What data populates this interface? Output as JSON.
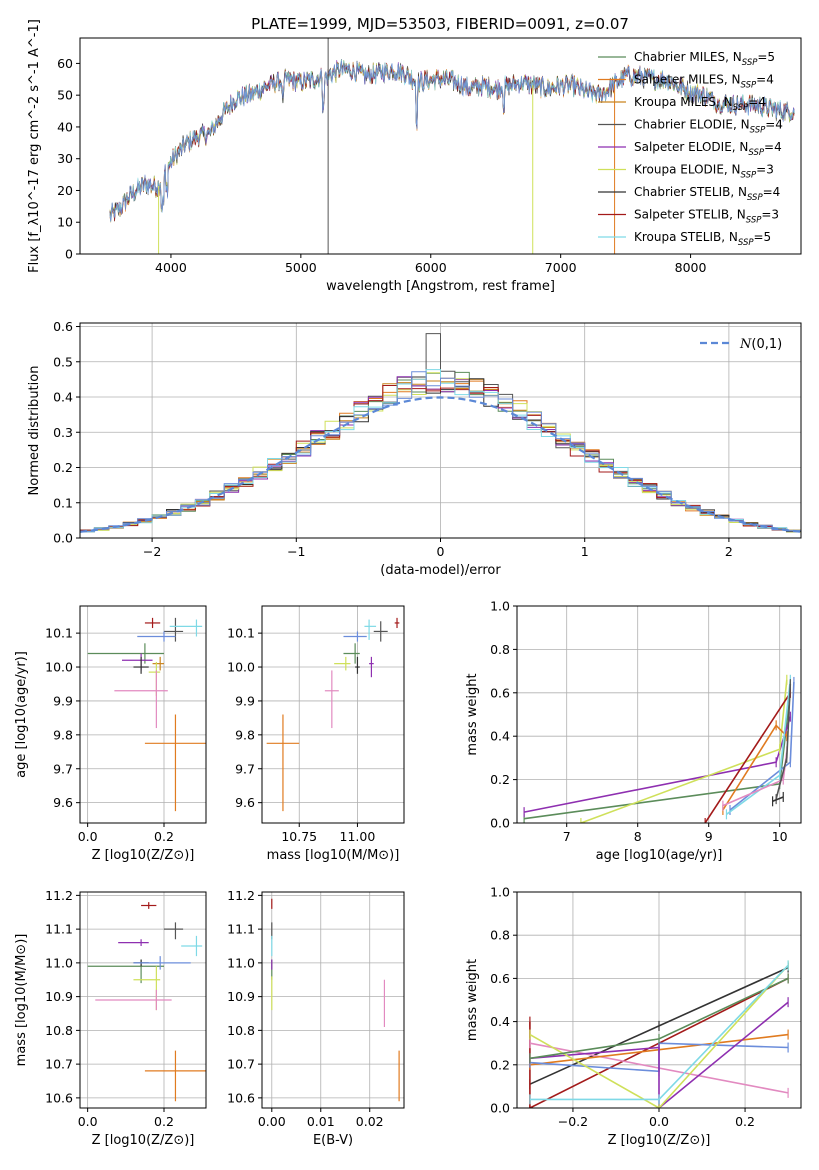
{
  "figure": {
    "title": "PLATE=1999, MJD=53503, FIBERID=0091, z=0.07"
  },
  "palette": [
    "#5b8c5a",
    "#e07b20",
    "#c9831e",
    "#555555",
    "#8e2fb0",
    "#cfe05a",
    "#333333",
    "#a31a1a",
    "#7fd9e6",
    "#6b8ddb",
    "#e28ac0"
  ],
  "chart_data": [
    {
      "id": "spectrum",
      "type": "line",
      "xlabel": "wavelength [Angstrom, rest frame]",
      "ylabel": "Flux [f_λ10^-17 erg cm^-2 s^-1 A^-1]",
      "xlim": [
        3300,
        8850
      ],
      "ylim": [
        0,
        68
      ],
      "xticks": [
        4000,
        5000,
        6000,
        7000,
        8000
      ],
      "yticks": [
        0,
        10,
        20,
        30,
        40,
        50,
        60
      ],
      "legend_position": "upper-right",
      "legend": [
        "Chabrier MILES, N_SSP=5",
        "Salpeter MILES, N_SSP=4",
        "Kroupa MILES, N_SSP=4",
        "Chabrier ELODIE, N_SSP=4",
        "Salpeter ELODIE, N_SSP=4",
        "Kroupa ELODIE, N_SSP=3",
        "Chabrier STELIB, N_SSP=4",
        "Salpeter STELIB, N_SSP=3",
        "Kroupa STELIB, N_SSP=5"
      ],
      "legend_colors": [
        "#5b8c5a",
        "#e07b20",
        "#c9831e",
        "#555555",
        "#8e2fb0",
        "#cfe05a",
        "#333333",
        "#a31a1a",
        "#7fd9e6"
      ],
      "continuum": {
        "x": [
          3530,
          3600,
          3700,
          3800,
          3900,
          3950,
          4000,
          4100,
          4200,
          4300,
          4400,
          4500,
          4600,
          4700,
          4800,
          4900,
          5000,
          5100,
          5200,
          5300,
          5400,
          5500,
          5600,
          5700,
          5800,
          5900,
          6000,
          6100,
          6200,
          6300,
          6400,
          6500,
          6600,
          6700,
          6800,
          6900,
          7000,
          7100,
          7200,
          7300,
          7400,
          7500,
          7600,
          7700,
          7800,
          7900,
          8000,
          8100,
          8200,
          8300,
          8400,
          8500,
          8600,
          8700,
          8800
        ],
        "y": [
          12,
          14,
          19,
          22,
          21,
          25,
          29,
          34,
          37,
          38,
          44,
          49,
          50,
          52,
          54,
          55,
          54,
          55,
          56,
          58,
          58,
          56,
          57,
          58,
          57,
          54,
          55,
          55,
          54,
          52,
          53,
          52,
          53,
          54,
          53,
          52,
          53,
          53,
          51,
          50,
          53,
          56,
          56,
          55,
          55,
          53,
          51,
          50,
          48,
          47,
          47,
          47,
          46,
          45,
          45
        ]
      }
    },
    {
      "id": "residual-histogram",
      "type": "histogram",
      "xlabel": "(data-model)/error",
      "ylabel": "Normed distribution",
      "xlim": [
        -2.5,
        2.5
      ],
      "ylim": [
        0,
        0.61
      ],
      "xticks": [
        -2,
        -1,
        0,
        1,
        2
      ],
      "yticks": [
        0.0,
        0.1,
        0.2,
        0.3,
        0.4,
        0.5,
        0.6
      ],
      "bin_width": 0.1,
      "grid": true,
      "legend": [
        "N(0,1)"
      ],
      "legend_position": "upper-right",
      "normal_curve": {
        "mean": 0,
        "sigma": 1
      }
    },
    {
      "id": "age-vs-Z",
      "type": "scatter-errorbar",
      "xlabel": "Z [log10(Z/Z⊙)]",
      "ylabel": "age [log10(age/yr)]",
      "xlim": [
        -0.02,
        0.31
      ],
      "ylim": [
        9.54,
        10.18
      ],
      "xticks": [
        0.0,
        0.2
      ],
      "yticks": [
        9.6,
        9.7,
        9.8,
        9.9,
        10.0,
        10.1
      ],
      "grid": true,
      "points": [
        {
          "x": 0.15,
          "y": 10.04,
          "xerr": [
            0.15,
            0.05
          ],
          "yerr": [
            0.03,
            0.03
          ],
          "color": "#5b8c5a"
        },
        {
          "x": 0.23,
          "y": 9.775,
          "xerr": [
            0.08,
            0.08
          ],
          "yerr": [
            0.2,
            0.085
          ],
          "color": "#e07b20"
        },
        {
          "x": 0.19,
          "y": 10.01,
          "xerr": [
            0.02,
            0.01
          ],
          "yerr": [
            0.02,
            0.02
          ],
          "color": "#c9831e"
        },
        {
          "x": 0.23,
          "y": 10.105,
          "xerr": [
            0.03,
            0.02
          ],
          "yerr": [
            0.03,
            0.04
          ],
          "color": "#555555"
        },
        {
          "x": 0.14,
          "y": 10.02,
          "xerr": [
            0.05,
            0.03
          ],
          "yerr": [
            0.03,
            0.02
          ],
          "color": "#8e2fb0"
        },
        {
          "x": 0.18,
          "y": 9.985,
          "xerr": [
            0.02,
            0.01
          ],
          "yerr": [
            0.07,
            0.03
          ],
          "color": "#cfe05a"
        },
        {
          "x": 0.14,
          "y": 10.0,
          "xerr": [
            0.02,
            0.02
          ],
          "yerr": [
            0.02,
            0.03
          ],
          "color": "#333333"
        },
        {
          "x": 0.17,
          "y": 10.13,
          "xerr": [
            0.02,
            0.02
          ],
          "yerr": [
            0.015,
            0.015
          ],
          "color": "#a31a1a"
        },
        {
          "x": 0.285,
          "y": 10.12,
          "xerr": [
            0.07,
            0.015
          ],
          "yerr": [
            0.03,
            0.02
          ],
          "color": "#7fd9e6"
        },
        {
          "x": 0.2,
          "y": 10.09,
          "xerr": [
            0.07,
            0.03
          ],
          "yerr": [
            0.015,
            0.015
          ],
          "color": "#6b8ddb"
        },
        {
          "x": 0.18,
          "y": 9.93,
          "xerr": [
            0.11,
            0.03
          ],
          "yerr": [
            0.11,
            0.06
          ],
          "color": "#e28ac0"
        }
      ]
    },
    {
      "id": "age-vs-mass",
      "type": "scatter-errorbar",
      "xlabel": "mass [log10(M/M⊙)]",
      "ylabel": "",
      "xlim": [
        10.59,
        11.2
      ],
      "ylim": [
        9.54,
        10.18
      ],
      "xticks": [
        10.75,
        11.0
      ],
      "yticks": [
        9.6,
        9.7,
        9.8,
        9.9,
        10.0,
        10.1
      ],
      "grid": true,
      "points": [
        {
          "x": 10.99,
          "y": 10.04,
          "xerr": [
            0.05,
            0.02
          ],
          "yerr": [
            0.03,
            0.03
          ],
          "color": "#5b8c5a"
        },
        {
          "x": 10.68,
          "y": 9.775,
          "xerr": [
            0.07,
            0.07
          ],
          "yerr": [
            0.2,
            0.085
          ],
          "color": "#e07b20"
        },
        {
          "x": 11.1,
          "y": 10.105,
          "xerr": [
            0.03,
            0.03
          ],
          "yerr": [
            0.03,
            0.03
          ],
          "color": "#555555"
        },
        {
          "x": 11.06,
          "y": 10.01,
          "xerr": [
            0.01,
            0.01
          ],
          "yerr": [
            0.04,
            0.02
          ],
          "color": "#8e2fb0"
        },
        {
          "x": 10.95,
          "y": 10.01,
          "xerr": [
            0.05,
            0.02
          ],
          "yerr": [
            0.02,
            0.02
          ],
          "color": "#cfe05a"
        },
        {
          "x": 11.0,
          "y": 10.0,
          "xerr": [
            0.01,
            0.01
          ],
          "yerr": [
            0.02,
            0.03
          ],
          "color": "#333333"
        },
        {
          "x": 11.17,
          "y": 10.13,
          "xerr": [
            0.01,
            0.01
          ],
          "yerr": [
            0.015,
            0.015
          ],
          "color": "#a31a1a"
        },
        {
          "x": 11.05,
          "y": 10.12,
          "xerr": [
            0.02,
            0.03
          ],
          "yerr": [
            0.04,
            0.02
          ],
          "color": "#7fd9e6"
        },
        {
          "x": 11.0,
          "y": 10.09,
          "xerr": [
            0.06,
            0.04
          ],
          "yerr": [
            0.015,
            0.015
          ],
          "color": "#6b8ddb"
        },
        {
          "x": 10.89,
          "y": 9.93,
          "xerr": [
            0.03,
            0.03
          ],
          "yerr": [
            0.11,
            0.06
          ],
          "color": "#e28ac0"
        }
      ]
    },
    {
      "id": "weight-vs-age",
      "type": "line",
      "xlabel": "age [log10(age/yr)]",
      "ylabel": "mass weight",
      "xlim": [
        6.3,
        10.3
      ],
      "ylim": [
        0,
        1.0
      ],
      "xticks": [
        7,
        8,
        9,
        10
      ],
      "yticks": [
        0.0,
        0.2,
        0.4,
        0.6,
        0.8,
        1.0
      ],
      "grid": true,
      "series": [
        {
          "color": "#5b8c5a",
          "x": [
            6.4,
            10.0,
            10.15
          ],
          "y": [
            0.02,
            0.18,
            0.6
          ]
        },
        {
          "color": "#8e2fb0",
          "x": [
            6.4,
            9.95,
            10.15
          ],
          "y": [
            0.05,
            0.28,
            0.49
          ]
        },
        {
          "color": "#cfe05a",
          "x": [
            7.2,
            10.0,
            10.1
          ],
          "y": [
            0.0,
            0.34,
            0.66
          ]
        },
        {
          "color": "#a31a1a",
          "x": [
            8.95,
            10.15
          ],
          "y": [
            0.0,
            0.6
          ]
        },
        {
          "color": "#e07b20",
          "x": [
            9.2,
            9.95,
            10.1
          ],
          "y": [
            0.06,
            0.45,
            0.4
          ]
        },
        {
          "color": "#6b8ddb",
          "x": [
            9.3,
            10.15,
            10.2
          ],
          "y": [
            0.06,
            0.28,
            0.65
          ]
        },
        {
          "color": "#7fd9e6",
          "x": [
            9.25,
            10.0,
            10.15
          ],
          "y": [
            0.04,
            0.22,
            0.66
          ]
        },
        {
          "color": "#e28ac0",
          "x": [
            9.2,
            10.05,
            10.1
          ],
          "y": [
            0.08,
            0.2,
            0.33
          ]
        },
        {
          "color": "#555555",
          "x": [
            9.95,
            10.1,
            10.15
          ],
          "y": [
            0.11,
            0.3,
            0.64
          ]
        },
        {
          "color": "#333333",
          "x": [
            9.9,
            10.05
          ],
          "y": [
            0.1,
            0.12
          ]
        }
      ]
    },
    {
      "id": "mass-vs-Z",
      "type": "scatter-errorbar",
      "xlabel": "Z [log10(Z/Z⊙)]",
      "ylabel": "mass [log10(M/M⊙)]",
      "xlim": [
        -0.02,
        0.31
      ],
      "ylim": [
        10.57,
        11.21
      ],
      "xticks": [
        0.0,
        0.2
      ],
      "yticks": [
        10.6,
        10.7,
        10.8,
        10.9,
        11.0,
        11.1,
        11.2
      ],
      "grid": true,
      "points": [
        {
          "x": 0.14,
          "y": 10.99,
          "xerr": [
            0.14,
            0.06
          ],
          "yerr": [
            0.05,
            0.02
          ],
          "color": "#5b8c5a"
        },
        {
          "x": 0.23,
          "y": 10.68,
          "xerr": [
            0.08,
            0.08
          ],
          "yerr": [
            0.09,
            0.06
          ],
          "color": "#e07b20"
        },
        {
          "x": 0.23,
          "y": 11.1,
          "xerr": [
            0.03,
            0.02
          ],
          "yerr": [
            0.03,
            0.02
          ],
          "color": "#555555"
        },
        {
          "x": 0.14,
          "y": 11.06,
          "xerr": [
            0.06,
            0.02
          ],
          "yerr": [
            0.01,
            0.01
          ],
          "color": "#8e2fb0"
        },
        {
          "x": 0.18,
          "y": 10.95,
          "xerr": [
            0.06,
            0.01
          ],
          "yerr": [
            0.09,
            0.04
          ],
          "color": "#cfe05a"
        },
        {
          "x": 0.14,
          "y": 11.0,
          "xerr": [
            0.02,
            0.02
          ],
          "yerr": [
            0.01,
            0.01
          ],
          "color": "#333333"
        },
        {
          "x": 0.16,
          "y": 11.17,
          "xerr": [
            0.02,
            0.02
          ],
          "yerr": [
            0.01,
            0.01
          ],
          "color": "#a31a1a"
        },
        {
          "x": 0.285,
          "y": 11.05,
          "xerr": [
            0.04,
            0.015
          ],
          "yerr": [
            0.03,
            0.03
          ],
          "color": "#7fd9e6"
        },
        {
          "x": 0.19,
          "y": 11.0,
          "xerr": [
            0.07,
            0.08
          ],
          "yerr": [
            0.02,
            0.02
          ],
          "color": "#6b8ddb"
        },
        {
          "x": 0.18,
          "y": 10.89,
          "xerr": [
            0.16,
            0.04
          ],
          "yerr": [
            0.03,
            0.03
          ],
          "color": "#e28ac0"
        }
      ]
    },
    {
      "id": "mass-vs-ebv",
      "type": "scatter-errorbar",
      "xlabel": "E(B-V)",
      "ylabel": "",
      "xlim": [
        -0.002,
        0.027
      ],
      "ylim": [
        10.57,
        11.21
      ],
      "xticks": [
        0.0,
        0.01,
        0.02
      ],
      "yticks": [
        10.6,
        10.7,
        10.8,
        10.9,
        11.0,
        11.1,
        11.2
      ],
      "grid": true,
      "points": [
        {
          "x": 0.0,
          "y": 10.99,
          "xerr": [
            0.0,
            0.0
          ],
          "yerr": [
            0.04,
            0.02
          ],
          "color": "#5b8c5a"
        },
        {
          "x": 0.026,
          "y": 10.66,
          "xerr": [
            0.0,
            0.0
          ],
          "yerr": [
            0.07,
            0.08
          ],
          "color": "#e07b20"
        },
        {
          "x": 0.0,
          "y": 11.1,
          "xerr": [
            0.0,
            0.0
          ],
          "yerr": [
            0.03,
            0.02
          ],
          "color": "#555555"
        },
        {
          "x": 0.0,
          "y": 11.0,
          "xerr": [
            0.0,
            0.0
          ],
          "yerr": [
            0.02,
            0.01
          ],
          "color": "#8e2fb0"
        },
        {
          "x": 0.0,
          "y": 10.93,
          "xerr": [
            0.0,
            0.0
          ],
          "yerr": [
            0.07,
            0.03
          ],
          "color": "#cfe05a"
        },
        {
          "x": 0.0,
          "y": 11.17,
          "xerr": [
            0.0,
            0.0
          ],
          "yerr": [
            0.01,
            0.02
          ],
          "color": "#a31a1a"
        },
        {
          "x": 0.0,
          "y": 11.05,
          "xerr": [
            0.0,
            0.0
          ],
          "yerr": [
            0.03,
            0.03
          ],
          "color": "#7fd9e6"
        },
        {
          "x": 0.023,
          "y": 10.88,
          "xerr": [
            0.0,
            0.0
          ],
          "yerr": [
            0.07,
            0.07
          ],
          "color": "#e28ac0"
        }
      ]
    },
    {
      "id": "weight-vs-Z",
      "type": "line",
      "xlabel": "Z [log10(Z/Z⊙)]",
      "ylabel": "mass weight",
      "xlim": [
        -0.33,
        0.33
      ],
      "ylim": [
        0,
        1.0
      ],
      "xticks": [
        -0.2,
        0.0,
        0.2
      ],
      "yticks": [
        0.0,
        0.2,
        0.4,
        0.6,
        0.8,
        1.0
      ],
      "grid": true,
      "series": [
        {
          "color": "#333333",
          "x": [
            -0.3,
            0.0,
            0.3
          ],
          "y": [
            0.11,
            0.38,
            0.65
          ]
        },
        {
          "color": "#a31a1a",
          "x": [
            -0.3,
            -0.3,
            0.3
          ],
          "y": [
            0.4,
            0.0,
            0.6
          ]
        },
        {
          "color": "#e28ac0",
          "x": [
            -0.3,
            0.3
          ],
          "y": [
            0.3,
            0.07
          ]
        },
        {
          "color": "#e07b20",
          "x": [
            -0.3,
            0.0,
            0.3
          ],
          "y": [
            0.2,
            0.27,
            0.34
          ]
        },
        {
          "color": "#6b8ddb",
          "x": [
            -0.3,
            0.0,
            0.0,
            0.3
          ],
          "y": [
            0.21,
            0.17,
            0.3,
            0.28
          ]
        },
        {
          "color": "#8e2fb0",
          "x": [
            -0.3,
            0.0,
            0.0,
            0.3
          ],
          "y": [
            0.23,
            0.28,
            0.0,
            0.49
          ]
        },
        {
          "color": "#cfe05a",
          "x": [
            -0.3,
            0.0,
            0.3
          ],
          "y": [
            0.34,
            0.0,
            0.66
          ]
        },
        {
          "color": "#5b8c5a",
          "x": [
            -0.3,
            0.0,
            0.3
          ],
          "y": [
            0.23,
            0.32,
            0.6
          ]
        },
        {
          "color": "#7fd9e6",
          "x": [
            -0.3,
            0.0,
            0.3
          ],
          "y": [
            0.04,
            0.04,
            0.66
          ]
        }
      ]
    }
  ]
}
